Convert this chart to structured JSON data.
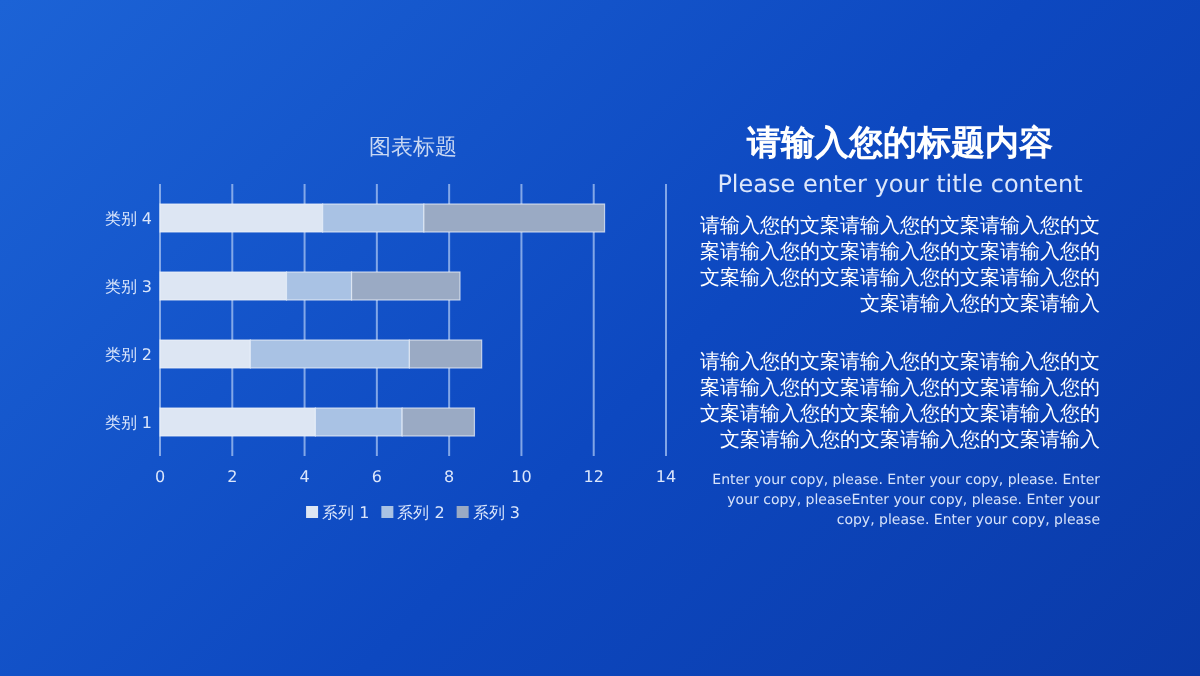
{
  "chart_data": [
    {
      "type": "bar",
      "orientation": "horizontal",
      "stacked": true,
      "title": "图表标题",
      "categories": [
        "类别 4",
        "类别 3",
        "类别 2",
        "类别 1"
      ],
      "series": [
        {
          "name": "系列 1",
          "color": "#dde6f3",
          "values": [
            4.5,
            3.5,
            2.5,
            4.3
          ]
        },
        {
          "name": "系列 2",
          "color": "#a9c2e4",
          "values": [
            2.8,
            1.8,
            4.4,
            2.4
          ]
        },
        {
          "name": "系列 3",
          "color": "#9aaac4",
          "values": [
            5,
            3,
            2,
            2
          ]
        }
      ],
      "xlim": [
        0,
        14
      ],
      "xticks": [
        0,
        2,
        4,
        6,
        8,
        10,
        12,
        14
      ],
      "grid": "x",
      "legend": "bottom"
    },
    {
      "type": "other",
      "title": "请输入您的标题内容",
      "subtitle": "Please enter your title content",
      "annotations": [
        "请输入您的文案请输入您的文案请输入您的文案请输入您的文案请输入您的文案请输入您的文案输入您的文案请输入您的文案请输入您的文案请输入您的文案请输入",
        "请输入您的文案请输入您的文案请输入您的文案请输入您的文案请输入您的文案请输入您的文案请输入您的文案输入您的文案请输入您的文案请输入您的文案请输入您的文案请输入",
        "Enter your copy, please. Enter your copy, please. Enter your copy, pleaseEnter your copy, please. Enter your copy, please. Enter your copy, please"
      ]
    }
  ]
}
